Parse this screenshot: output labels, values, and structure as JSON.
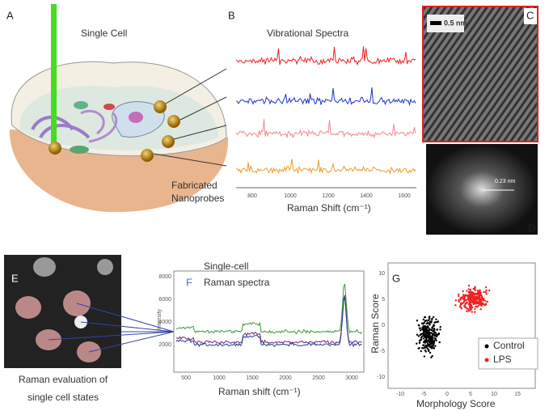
{
  "panel_a": {
    "letter": "A",
    "title": "Single Cell",
    "probe_label": [
      "Fabricated",
      "Nanoprobes"
    ]
  },
  "panel_b": {
    "letter": "B",
    "title": "Vibrational Spectra",
    "xlabel": "Raman Shift (cm⁻¹)",
    "xticks": [
      "800",
      "1000",
      "1200",
      "1400",
      "1600"
    ]
  },
  "panel_c": {
    "letter": "C",
    "scale": "0.5 nm"
  },
  "panel_d": {
    "letter": "D",
    "spacing": "0.23 nm"
  },
  "panel_e": {
    "letter": "E",
    "caption": [
      "Raman evaluation of",
      "single cell states"
    ]
  },
  "panel_f": {
    "letter": "F",
    "title": [
      "Single-cell",
      "Raman spectra"
    ],
    "ylabel": "Intensity",
    "xlabel": "Raman shift (cm⁻¹)",
    "xticks": [
      "500",
      "1000",
      "1500",
      "2000",
      "2500",
      "3000"
    ],
    "yticks": [
      "8000",
      "6000",
      "4000",
      "2000"
    ]
  },
  "panel_g": {
    "letter": "G",
    "ylabel": "Raman Score",
    "xlabel": "Morphology Score",
    "xticks": [
      "-10",
      "-5",
      "0",
      "5",
      "10",
      "15"
    ],
    "yticks": [
      "10",
      "5",
      "0",
      "-5",
      "-10"
    ],
    "legend": [
      "Control",
      "LPS"
    ]
  }
}
